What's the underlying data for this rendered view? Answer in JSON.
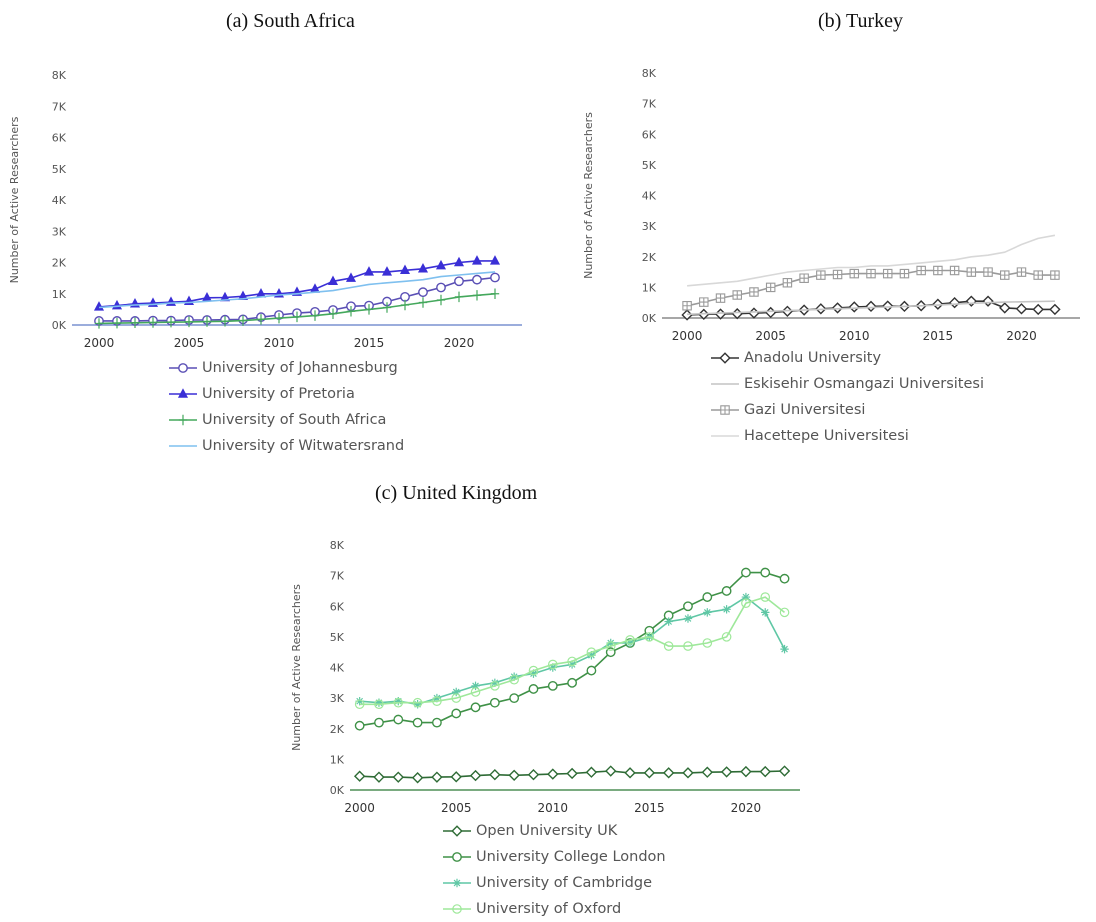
{
  "figure": {
    "panel_a_title": "(a) South Africa",
    "panel_b_title": "(b) Turkey",
    "panel_c_title": "(c) United Kingdom"
  },
  "chart_data": [
    {
      "type": "line",
      "title": "(a) South Africa",
      "ylabel": "Number of Active Researchers",
      "xlabel": "",
      "yticks": [
        "0K",
        "1K",
        "2K",
        "3K",
        "4K",
        "5K",
        "6K",
        "7K",
        "8K"
      ],
      "xticks": [
        "2000",
        "2005",
        "2010",
        "2015",
        "2020"
      ],
      "ylim": [
        0,
        8000
      ],
      "xlim": [
        1998.5,
        2023.5
      ],
      "grid": false,
      "legend_position": "bottom",
      "x": [
        2000,
        2001,
        2002,
        2003,
        2004,
        2005,
        2006,
        2007,
        2008,
        2009,
        2010,
        2011,
        2012,
        2013,
        2014,
        2015,
        2016,
        2017,
        2018,
        2019,
        2020,
        2021,
        2022
      ],
      "series": [
        {
          "name": "University of Johannesburg",
          "color": "#5a4fb5",
          "marker": "circle",
          "values": [
            130,
            130,
            130,
            140,
            140,
            160,
            160,
            170,
            180,
            250,
            320,
            380,
            420,
            480,
            600,
            620,
            750,
            900,
            1050,
            1200,
            1400,
            1450,
            1520
          ]
        },
        {
          "name": "University of Pretoria",
          "color": "#3a2fd6",
          "marker": "triangle",
          "values": [
            580,
            620,
            680,
            700,
            730,
            760,
            870,
            880,
            920,
            1000,
            1000,
            1050,
            1150,
            1400,
            1500,
            1700,
            1700,
            1750,
            1800,
            1900,
            2000,
            2050,
            2050
          ]
        },
        {
          "name": "University of South Africa",
          "color": "#44a85c",
          "marker": "plus",
          "values": [
            50,
            60,
            70,
            80,
            90,
            100,
            110,
            120,
            140,
            180,
            220,
            260,
            300,
            360,
            440,
            500,
            560,
            640,
            720,
            800,
            900,
            950,
            1000
          ]
        },
        {
          "name": "University of Witwatersrand",
          "color": "#7fc0ef",
          "marker": "none",
          "values": [
            560,
            600,
            640,
            660,
            700,
            720,
            760,
            800,
            840,
            900,
            960,
            1000,
            1050,
            1100,
            1200,
            1300,
            1350,
            1400,
            1450,
            1550,
            1600,
            1650,
            1700
          ]
        }
      ]
    },
    {
      "type": "line",
      "title": "(b) Turkey",
      "ylabel": "Number of Active Researchers",
      "xlabel": "",
      "yticks": [
        "0K",
        "1K",
        "2K",
        "3K",
        "4K",
        "5K",
        "6K",
        "7K",
        "8K"
      ],
      "xticks": [
        "2000",
        "2005",
        "2010",
        "2015",
        "2020"
      ],
      "ylim": [
        0,
        8000
      ],
      "xlim": [
        1998.5,
        2023.5
      ],
      "grid": false,
      "legend_position": "bottom",
      "x": [
        2000,
        2001,
        2002,
        2003,
        2004,
        2005,
        2006,
        2007,
        2008,
        2009,
        2010,
        2011,
        2012,
        2013,
        2014,
        2015,
        2016,
        2017,
        2018,
        2019,
        2020,
        2021,
        2022
      ],
      "series": [
        {
          "name": "Anadolu University",
          "color": "#333333",
          "marker": "diamond",
          "values": [
            100,
            120,
            130,
            140,
            160,
            180,
            220,
            260,
            300,
            330,
            360,
            380,
            390,
            380,
            400,
            450,
            500,
            550,
            550,
            330,
            300,
            280,
            280
          ]
        },
        {
          "name": "Eskisehir Osmangazi Universitesi",
          "color": "#c4c4c4",
          "marker": "none",
          "values": [
            120,
            140,
            160,
            180,
            200,
            220,
            240,
            260,
            280,
            300,
            320,
            340,
            360,
            380,
            400,
            420,
            450,
            480,
            500,
            520,
            530,
            540,
            550
          ]
        },
        {
          "name": "Gazi Universitesi",
          "color": "#9a9a9a",
          "marker": "square",
          "values": [
            400,
            520,
            650,
            750,
            850,
            1000,
            1150,
            1300,
            1400,
            1420,
            1450,
            1450,
            1450,
            1450,
            1550,
            1550,
            1550,
            1500,
            1500,
            1400,
            1500,
            1400,
            1400
          ]
        },
        {
          "name": "Hacettepe Universitesi",
          "color": "#d8d8d8",
          "marker": "none",
          "values": [
            1050,
            1100,
            1150,
            1200,
            1300,
            1400,
            1500,
            1550,
            1600,
            1650,
            1650,
            1700,
            1700,
            1750,
            1800,
            1850,
            1900,
            2000,
            2050,
            2150,
            2400,
            2600,
            2700
          ]
        }
      ]
    },
    {
      "type": "line",
      "title": "(c) United Kingdom",
      "ylabel": "Number of Active Researchers",
      "xlabel": "",
      "yticks": [
        "0K",
        "1K",
        "2K",
        "3K",
        "4K",
        "5K",
        "6K",
        "7K",
        "8K"
      ],
      "xticks": [
        "2000",
        "2005",
        "2010",
        "2015",
        "2020"
      ],
      "ylim": [
        0,
        8000
      ],
      "xlim": [
        1999.5,
        2022.8
      ],
      "grid": false,
      "legend_position": "bottom",
      "x": [
        2000,
        2001,
        2002,
        2003,
        2004,
        2005,
        2006,
        2007,
        2008,
        2009,
        2010,
        2011,
        2012,
        2013,
        2014,
        2015,
        2016,
        2017,
        2018,
        2019,
        2020,
        2021,
        2022
      ],
      "series": [
        {
          "name": "Open University UK",
          "color": "#2e6b35",
          "marker": "diamond",
          "values": [
            450,
            420,
            420,
            400,
            420,
            430,
            470,
            500,
            480,
            500,
            520,
            540,
            580,
            620,
            560,
            560,
            560,
            560,
            580,
            590,
            600,
            600,
            620
          ]
        },
        {
          "name": "University College London",
          "color": "#3f9147",
          "marker": "circle",
          "values": [
            2100,
            2200,
            2300,
            2200,
            2200,
            2500,
            2700,
            2850,
            3000,
            3300,
            3400,
            3500,
            3900,
            4500,
            4800,
            5200,
            5700,
            6000,
            6300,
            6500,
            7100,
            7100,
            6900
          ]
        },
        {
          "name": "University of Cambridge",
          "color": "#5fc7a5",
          "marker": "star",
          "values": [
            2900,
            2850,
            2900,
            2800,
            3000,
            3200,
            3400,
            3500,
            3700,
            3800,
            4000,
            4100,
            4400,
            4800,
            4800,
            5000,
            5500,
            5600,
            5800,
            5900,
            6300,
            5800,
            4600
          ]
        },
        {
          "name": "University of Oxford",
          "color": "#9ee89a",
          "marker": "circle-open",
          "values": [
            2800,
            2800,
            2850,
            2850,
            2900,
            3000,
            3200,
            3400,
            3600,
            3900,
            4100,
            4200,
            4500,
            4700,
            4900,
            5000,
            4700,
            4700,
            4800,
            5000,
            6100,
            6300,
            5800
          ]
        }
      ]
    }
  ]
}
